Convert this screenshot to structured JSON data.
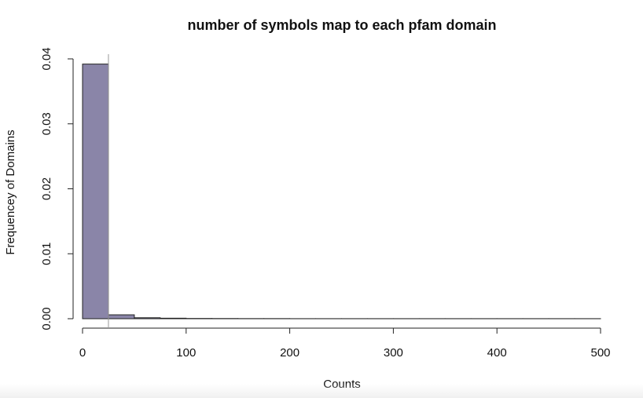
{
  "chart_data": {
    "type": "bar",
    "subtype": "histogram",
    "title": "number of symbols map to each pfam domain",
    "xlabel": "Counts",
    "ylabel": "Frequencey of Domains",
    "bin_width": 25,
    "bins": [
      {
        "start": 0,
        "end": 25,
        "value": 0.0392
      },
      {
        "start": 25,
        "end": 50,
        "value": 0.0006
      },
      {
        "start": 50,
        "end": 75,
        "value": 0.00015
      },
      {
        "start": 75,
        "end": 100,
        "value": 8e-05
      },
      {
        "start": 100,
        "end": 125,
        "value": 4e-05
      },
      {
        "start": 125,
        "end": 150,
        "value": 3e-05
      },
      {
        "start": 150,
        "end": 175,
        "value": 2e-05
      },
      {
        "start": 175,
        "end": 200,
        "value": 2e-05
      },
      {
        "start": 200,
        "end": 225,
        "value": 1e-05
      },
      {
        "start": 225,
        "end": 250,
        "value": 1e-05
      },
      {
        "start": 250,
        "end": 275,
        "value": 1e-05
      },
      {
        "start": 275,
        "end": 300,
        "value": 1e-05
      },
      {
        "start": 300,
        "end": 325,
        "value": 1e-05
      },
      {
        "start": 325,
        "end": 350,
        "value": 1e-05
      },
      {
        "start": 350,
        "end": 375,
        "value": 1e-05
      },
      {
        "start": 375,
        "end": 400,
        "value": 1e-05
      },
      {
        "start": 400,
        "end": 425,
        "value": 1e-05
      },
      {
        "start": 425,
        "end": 450,
        "value": 1e-05
      },
      {
        "start": 450,
        "end": 475,
        "value": 1e-05
      },
      {
        "start": 475,
        "end": 500,
        "value": 1e-05
      }
    ],
    "xlim": [
      0,
      500
    ],
    "ylim": [
      0,
      0.04
    ],
    "x_ticks": [
      0,
      100,
      200,
      300,
      400,
      500
    ],
    "x_tick_labels": [
      "0",
      "100",
      "200",
      "300",
      "400",
      "500"
    ],
    "y_ticks": [
      0,
      0.01,
      0.02,
      0.03,
      0.04
    ],
    "y_tick_labels": [
      "0.00",
      "0.01",
      "0.02",
      "0.03",
      "0.04"
    ],
    "reference_line_x": 25,
    "bar_fill": "#8a85a8",
    "bar_stroke": "#222222",
    "grid": false
  }
}
